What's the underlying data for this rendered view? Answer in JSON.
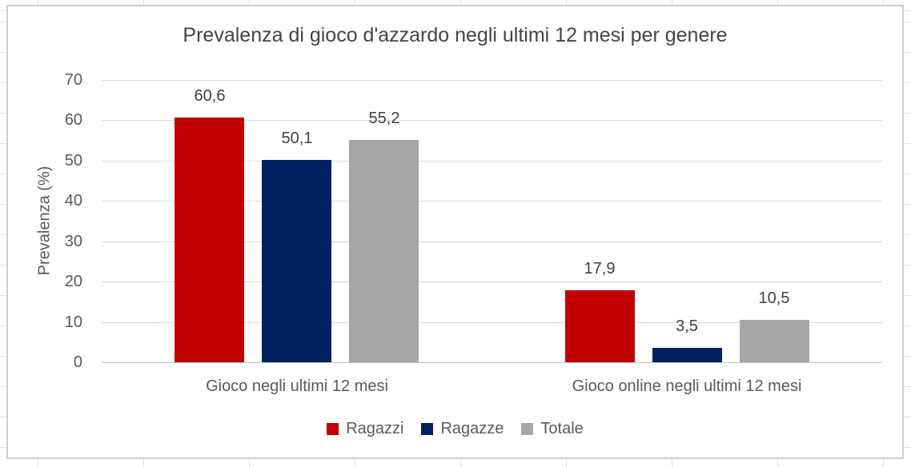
{
  "chart_data": {
    "type": "bar",
    "title": "Prevalenza di gioco d'azzardo negli ultimi 12 mesi per genere",
    "ylabel": "Prevalenza (%)",
    "xlabel": "",
    "categories": [
      "Gioco negli ultimi 12 mesi",
      "Gioco online negli ultimi 12 mesi"
    ],
    "series": [
      {
        "name": "Ragazzi",
        "color": "#C00000",
        "values": [
          60.6,
          17.9
        ]
      },
      {
        "name": "Ragazze",
        "color": "#002060",
        "values": [
          50.1,
          3.5
        ]
      },
      {
        "name": "Totale",
        "color": "#A6A6A6",
        "values": [
          55.2,
          10.5
        ]
      }
    ],
    "ylim": [
      0,
      70
    ],
    "yticks": [
      0,
      10,
      20,
      30,
      40,
      50,
      60,
      70
    ],
    "grid": true,
    "legend_position": "bottom",
    "decimal_separator": ","
  }
}
